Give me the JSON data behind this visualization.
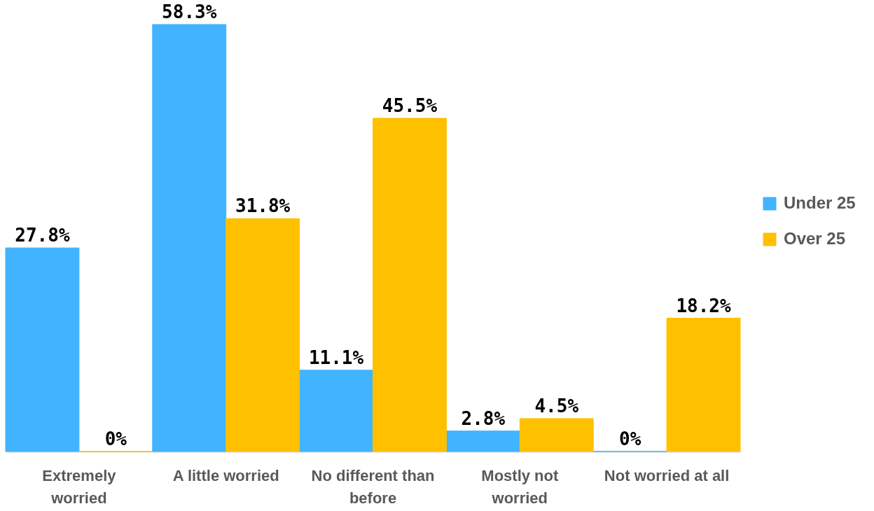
{
  "chart_data": {
    "type": "bar",
    "categories": [
      "Extremely worried",
      "A little worried",
      "No different than before",
      "Mostly not worried",
      "Not worried at all"
    ],
    "series": [
      {
        "name": "Under 25",
        "color": "#41b3ff",
        "values": [
          27.8,
          58.3,
          11.1,
          2.8,
          0
        ],
        "value_labels": [
          "27.8%",
          "58.3%",
          "11.1%",
          "2.8%",
          "0%"
        ]
      },
      {
        "name": "Over 25",
        "color": "#ffc000",
        "values": [
          0,
          31.8,
          45.5,
          4.5,
          18.2
        ],
        "value_labels": [
          "0%",
          "31.8%",
          "45.5%",
          "4.5%",
          "18.2%"
        ]
      }
    ],
    "legend": "right",
    "tick_labels": "x"
  }
}
